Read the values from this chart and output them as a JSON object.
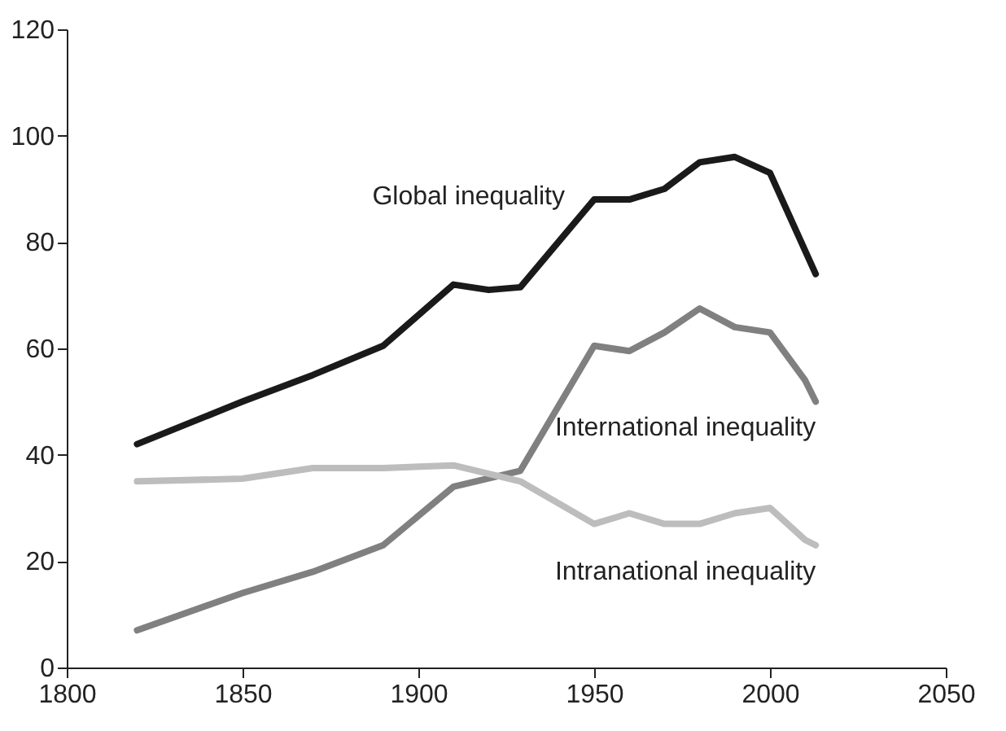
{
  "chart_data": {
    "type": "line",
    "xlim": [
      1800,
      2050
    ],
    "xticks": [
      1800,
      1850,
      1900,
      1950,
      2000,
      2050
    ],
    "ylim": [
      0,
      120
    ],
    "yticks": [
      0,
      20,
      40,
      60,
      80,
      100,
      120
    ],
    "grid": false,
    "legend": false,
    "marker": "none",
    "line_style": "solid",
    "series": [
      {
        "name": "Global inequality",
        "color": "#1a1a1a",
        "x": [
          1820,
          1850,
          1870,
          1890,
          1910,
          1920,
          1929,
          1950,
          1960,
          1970,
          1980,
          1990,
          2000,
          2013
        ],
        "values": [
          42,
          50,
          55,
          60.5,
          72,
          71,
          71.5,
          88,
          88,
          90,
          95,
          96,
          93,
          74
        ]
      },
      {
        "name": "International inequality",
        "color": "#808080",
        "x": [
          1820,
          1850,
          1870,
          1890,
          1910,
          1929,
          1950,
          1960,
          1970,
          1980,
          1990,
          2000,
          2010,
          2013
        ],
        "values": [
          7,
          14,
          18,
          23,
          34,
          37,
          60.5,
          59.5,
          63,
          67.5,
          64,
          63,
          54,
          50
        ]
      },
      {
        "name": "Intranational inequality",
        "color": "#bdbdbd",
        "x": [
          1820,
          1850,
          1870,
          1890,
          1910,
          1929,
          1950,
          1960,
          1970,
          1980,
          1990,
          2000,
          2010,
          2013
        ],
        "values": [
          35,
          35.5,
          37.5,
          37.5,
          38,
          35,
          27,
          29,
          27,
          27,
          29,
          30,
          24,
          23
        ]
      }
    ]
  }
}
